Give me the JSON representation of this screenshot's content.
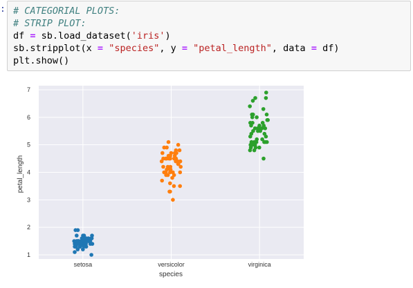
{
  "cell": {
    "prompt": ":",
    "lines": [
      {
        "comment": "# CATEGORIAL PLOTS:"
      },
      {
        "comment": "# STRIP PLOT:"
      },
      {
        "a": "df ",
        "op1": "=",
        "b": " sb.load_dataset(",
        "s1": "'iris'",
        "c": ")"
      },
      {
        "a": "sb.stripplot(x ",
        "op1": "=",
        "s1": " \"species\"",
        "b": ", y ",
        "op2": "=",
        "s2": " \"petal_length\"",
        "c": ", data ",
        "op3": "=",
        "d": " df)"
      },
      {
        "a": "plt.show()"
      }
    ]
  },
  "chart_data": {
    "type": "scatter",
    "title": "",
    "xlabel": "species",
    "ylabel": "petal_length",
    "ylim": [
      0.85,
      7.15
    ],
    "yticks": [
      1,
      2,
      3,
      4,
      5,
      6,
      7
    ],
    "categories": [
      "setosa",
      "versicolor",
      "virginica"
    ],
    "grid": true,
    "series": [
      {
        "category": "setosa",
        "color": "#1f77b4",
        "values": [
          1.4,
          1.4,
          1.3,
          1.5,
          1.4,
          1.7,
          1.4,
          1.5,
          1.4,
          1.5,
          1.5,
          1.6,
          1.4,
          1.1,
          1.2,
          1.5,
          1.3,
          1.4,
          1.7,
          1.5,
          1.7,
          1.5,
          1.0,
          1.7,
          1.9,
          1.6,
          1.6,
          1.5,
          1.4,
          1.6,
          1.6,
          1.5,
          1.5,
          1.4,
          1.5,
          1.2,
          1.3,
          1.4,
          1.3,
          1.5,
          1.3,
          1.3,
          1.3,
          1.6,
          1.9,
          1.4,
          1.6,
          1.4,
          1.5,
          1.4
        ]
      },
      {
        "category": "versicolor",
        "color": "#ff7f0e",
        "values": [
          4.7,
          4.5,
          4.9,
          4.0,
          4.6,
          4.5,
          4.7,
          3.3,
          4.6,
          3.9,
          3.5,
          4.2,
          4.0,
          4.7,
          3.6,
          4.4,
          4.5,
          4.1,
          4.5,
          3.9,
          4.8,
          4.0,
          4.9,
          4.7,
          4.3,
          4.4,
          4.8,
          5.0,
          4.5,
          3.5,
          3.8,
          3.7,
          3.9,
          5.1,
          4.5,
          4.5,
          4.7,
          4.4,
          4.1,
          4.0,
          4.4,
          4.6,
          4.0,
          3.3,
          4.2,
          4.2,
          4.2,
          4.3,
          3.0,
          4.1
        ]
      },
      {
        "category": "virginica",
        "color": "#2ca02c",
        "values": [
          6.0,
          5.1,
          5.9,
          5.6,
          5.8,
          6.6,
          4.5,
          6.3,
          5.8,
          6.1,
          5.1,
          5.3,
          5.5,
          5.0,
          5.1,
          5.3,
          5.5,
          6.7,
          6.9,
          5.0,
          5.7,
          4.9,
          6.7,
          4.9,
          5.7,
          6.0,
          4.8,
          4.9,
          5.6,
          5.8,
          6.1,
          6.4,
          5.6,
          5.1,
          5.6,
          6.1,
          5.6,
          5.5,
          4.8,
          5.4,
          5.6,
          5.1,
          5.1,
          5.9,
          5.7,
          5.2,
          5.0,
          5.2,
          5.4,
          5.1
        ]
      }
    ]
  }
}
